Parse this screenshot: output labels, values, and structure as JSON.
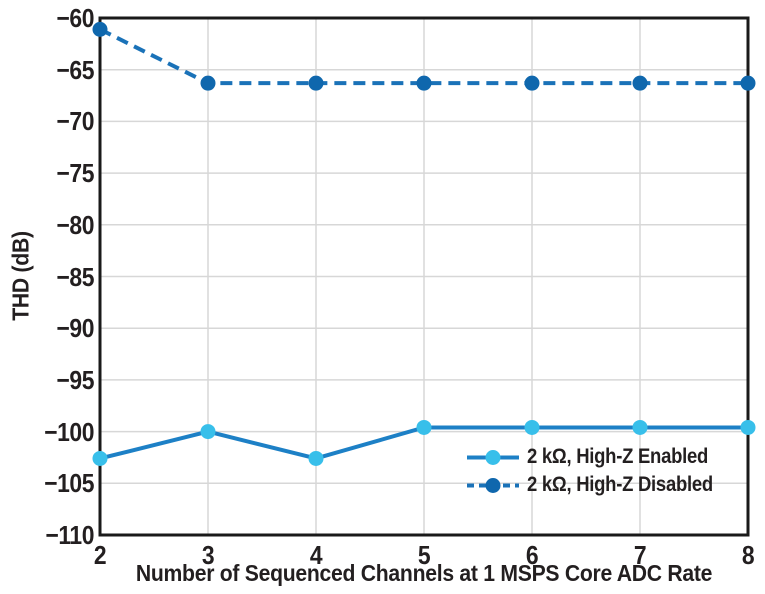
{
  "chart_data": {
    "type": "line",
    "title": "",
    "xlabel": "Number of Sequenced Channels at 1 MSPS Core ADC Rate",
    "ylabel": "THD (dB)",
    "xlim": [
      2,
      8
    ],
    "ylim": [
      -110,
      -60
    ],
    "xticks": [
      2,
      3,
      4,
      5,
      6,
      7,
      8
    ],
    "yticks": [
      -60,
      -65,
      -70,
      -75,
      -80,
      -85,
      -90,
      -95,
      -100,
      -105,
      -110
    ],
    "grid": true,
    "legend_position": "lower right",
    "x": [
      2,
      3,
      4,
      5,
      6,
      7,
      8
    ],
    "series": [
      {
        "name": "2 kΩ, High-Z Enabled",
        "style": "solid",
        "line_color": "#1d80c6",
        "marker_color": "#38bfea",
        "values": [
          -102.6,
          -100.0,
          -102.6,
          -99.6,
          -99.6,
          -99.6,
          -99.6
        ]
      },
      {
        "name": "2 kΩ, High-Z Disabled",
        "style": "dashed",
        "line_color": "#1a72b8",
        "marker_color": "#0f67ad",
        "values": [
          -61.1,
          -66.3,
          -66.3,
          -66.3,
          -66.3,
          -66.3,
          -66.3
        ]
      }
    ],
    "colors": {
      "grid": "#d7d7d7",
      "axis": "#1a1a1a",
      "text": "#231f20"
    }
  }
}
